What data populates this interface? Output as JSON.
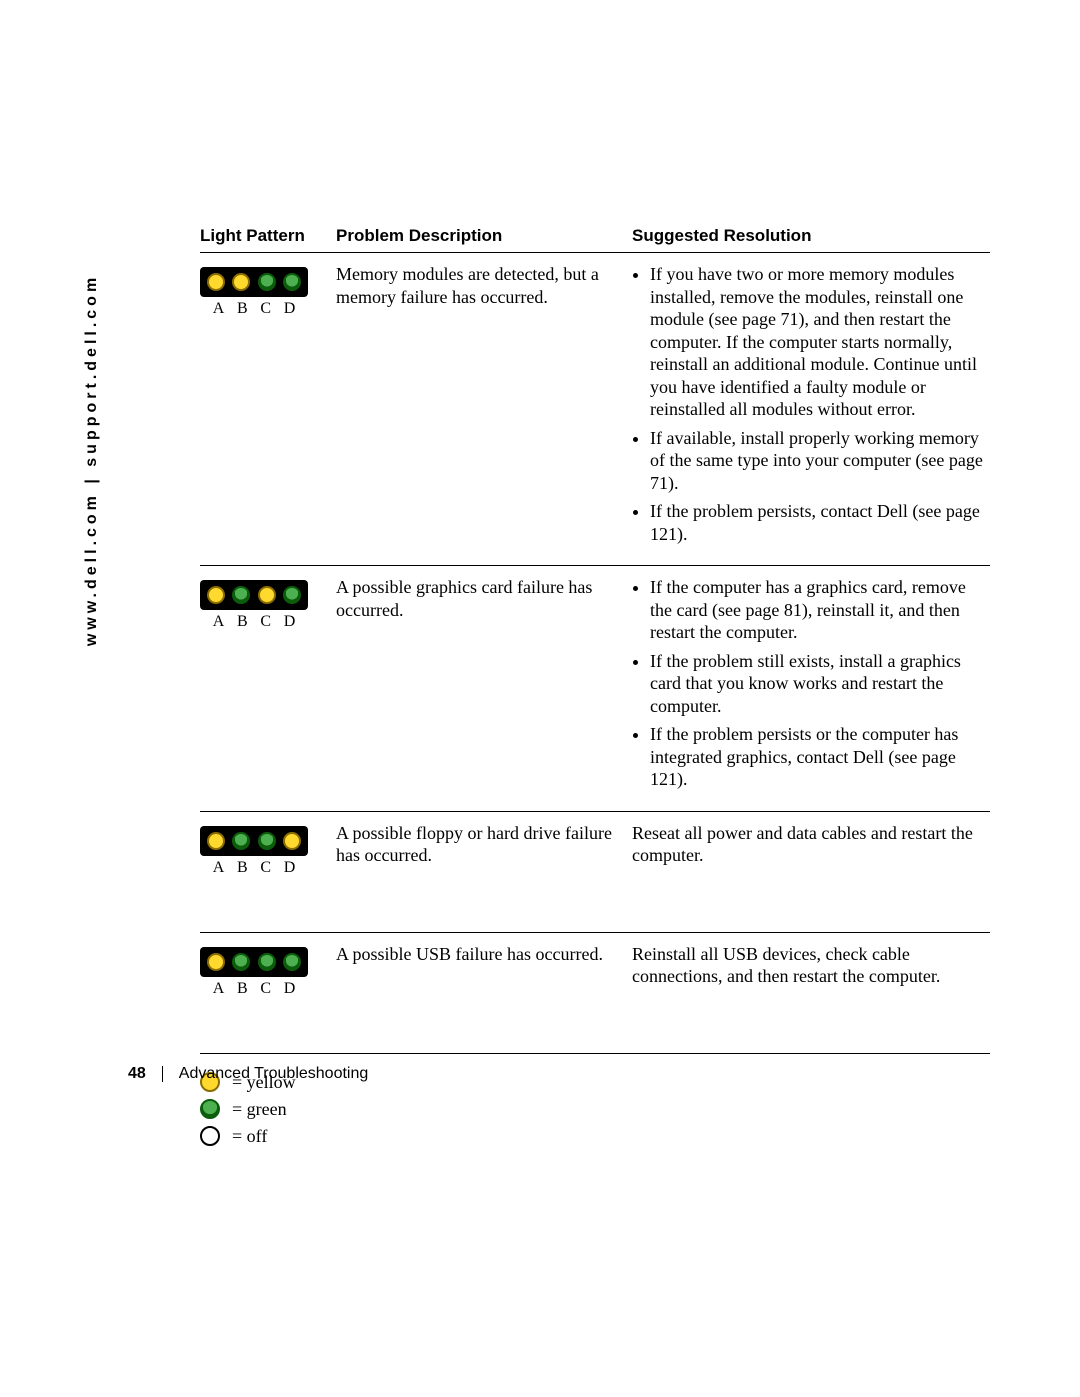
{
  "side_text": "www.dell.com | support.dell.com",
  "headers": {
    "light": "Light Pattern",
    "problem": "Problem Description",
    "suggested": "Suggested Resolution"
  },
  "led_position_labels": [
    "A",
    "B",
    "C",
    "D"
  ],
  "colors": {
    "yellow": "#ffd92e",
    "green_light": "#4caf50",
    "green_dark": "#0b5d0b",
    "off": "#ffffff",
    "panel_bg": "#000000"
  },
  "rows": [
    {
      "lights": [
        "yellow",
        "yellow",
        "green",
        "green"
      ],
      "problem": "Memory modules are detected, but a memory failure has occurred.",
      "suggestions": [
        "If you have two or more memory modules installed, remove the modules, reinstall one module (see page 71), and then restart the computer. If the computer starts normally, reinstall an additional module. Continue until you have identified a faulty module or reinstalled all modules without error.",
        "If available, install properly working memory of the same type into your computer (see page 71).",
        "If the problem persists, contact Dell (see page 121)."
      ],
      "suggestion_style": "list"
    },
    {
      "lights": [
        "yellow",
        "green",
        "yellow",
        "green"
      ],
      "problem": "A possible graphics card failure has occurred.",
      "suggestions": [
        "If the computer has a graphics card, remove the card (see page 81), reinstall it, and then restart the computer.",
        "If the problem still exists, install a graphics card that you know works and restart the computer.",
        "If the problem persists or the computer has integrated graphics, contact Dell (see page 121)."
      ],
      "suggestion_style": "list"
    },
    {
      "lights": [
        "yellow",
        "green",
        "green",
        "yellow"
      ],
      "problem": "A possible floppy or hard drive failure has occurred.",
      "suggestions": [
        "Reseat all power and data cables and restart the computer."
      ],
      "suggestion_style": "plain"
    },
    {
      "lights": [
        "yellow",
        "green",
        "green",
        "green"
      ],
      "problem": "A possible USB failure has occurred.",
      "suggestions": [
        "Reinstall all USB devices, check cable connections, and then restart the computer."
      ],
      "suggestion_style": "plain"
    }
  ],
  "legend": {
    "yellow": "= yellow",
    "green": "= green",
    "off": "= off"
  },
  "footer": {
    "page_number": "48",
    "section": "Advanced Troubleshooting"
  }
}
